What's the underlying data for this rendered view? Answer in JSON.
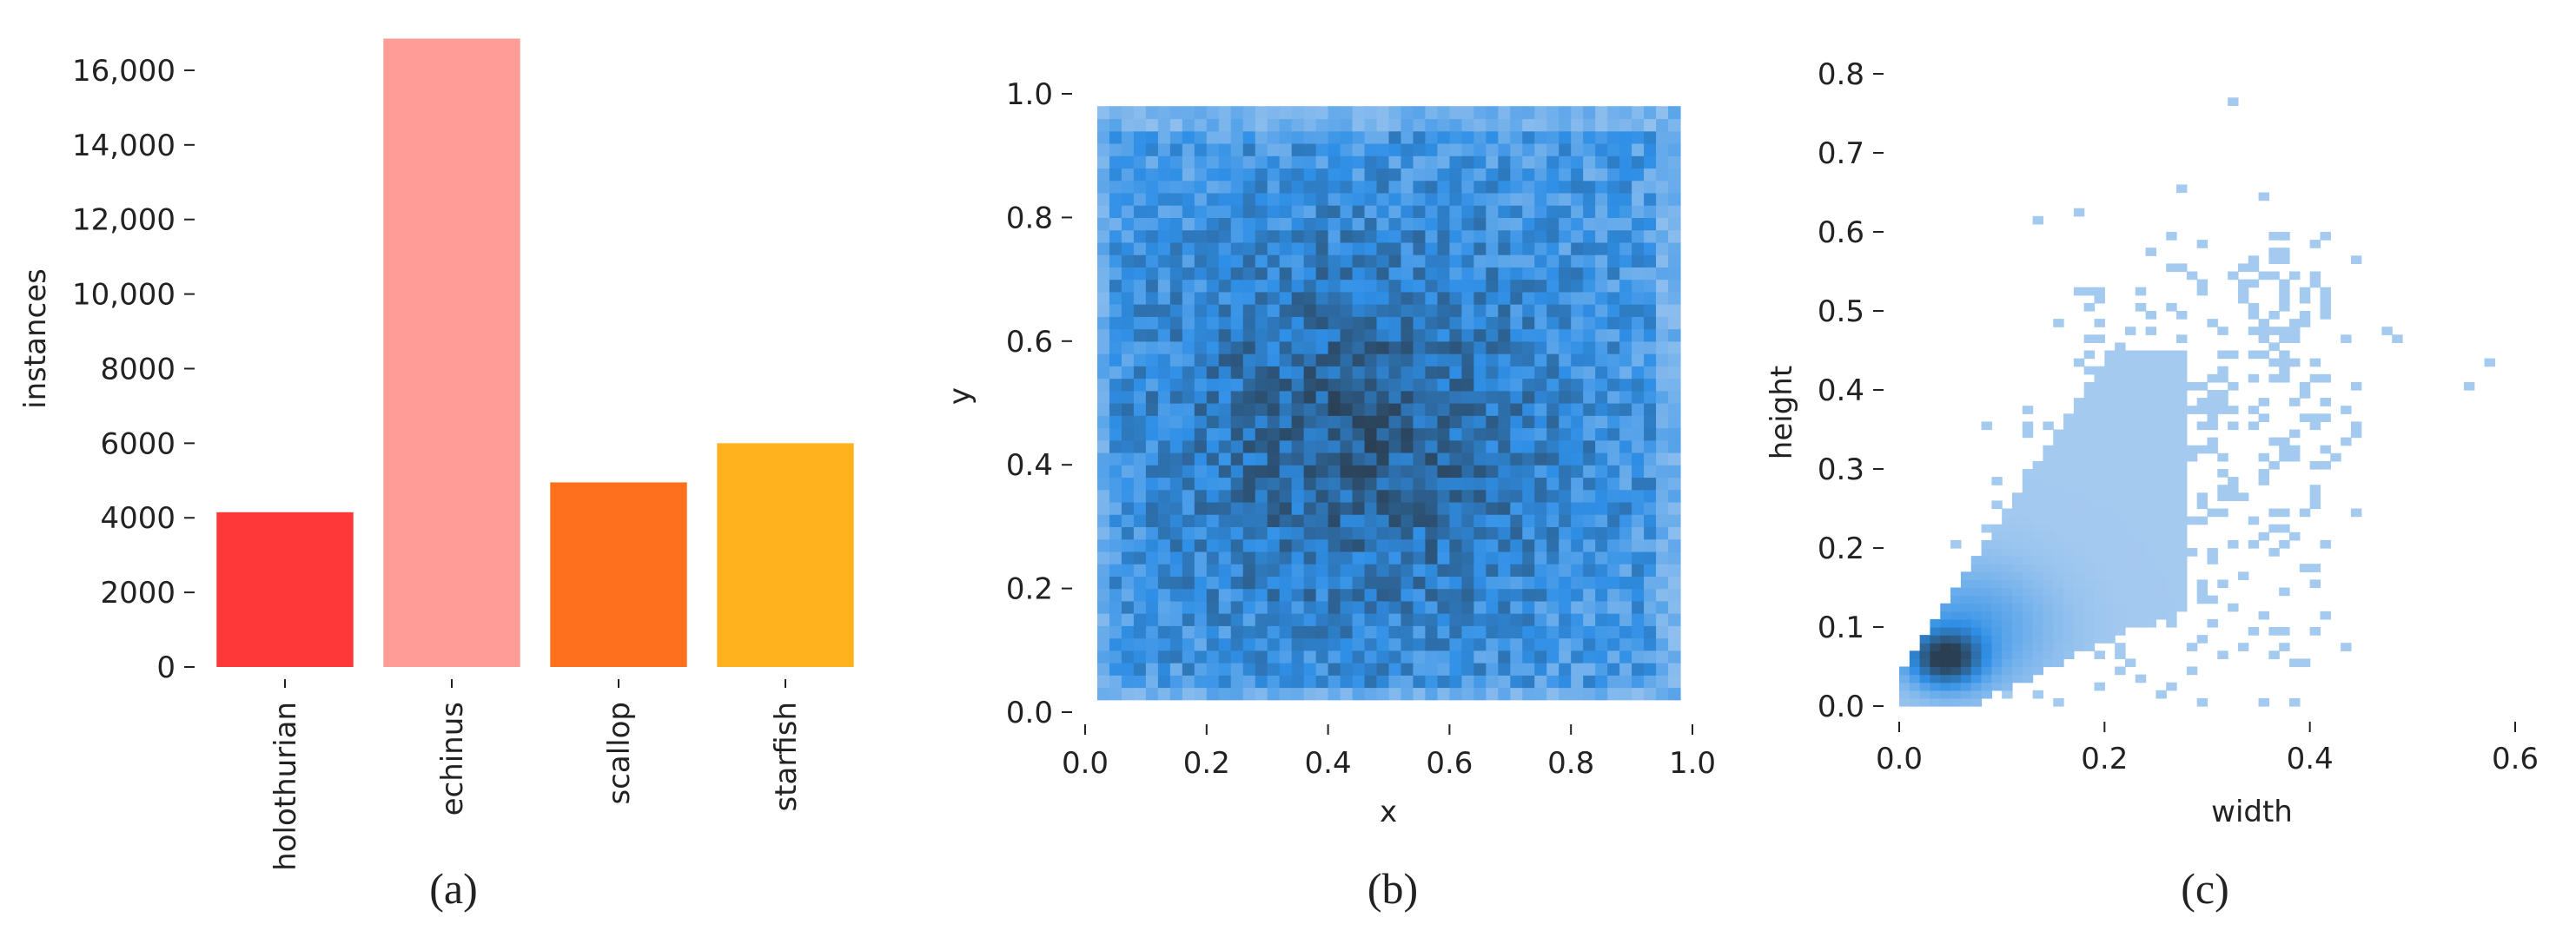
{
  "chart_data": [
    {
      "type": "bar",
      "caption": "(a)",
      "categories": [
        "holothurian",
        "echinus",
        "scallop",
        "starfish"
      ],
      "values": [
        4150,
        16850,
        4950,
        6000
      ],
      "colors": [
        "#fe3838",
        "#fe9d97",
        "#ff701e",
        "#ffb21d"
      ],
      "xlabel": "",
      "ylabel": "instances",
      "ylim": [
        0,
        17000
      ],
      "yticks": [
        0,
        2000,
        4000,
        6000,
        8000,
        10000,
        12000,
        14000,
        16000
      ],
      "ytick_labels": [
        "0",
        "2000",
        "4000",
        "6000",
        "8000",
        "10,000",
        "12,000",
        "14,000",
        "16,000"
      ],
      "grid": false
    },
    {
      "type": "heatmap",
      "caption": "(b)",
      "description_of_values": "2D histogram of box centers; 50x50 bins covering [0,1]x[0,1], densest near x≈0.45, y≈0.45",
      "xlabel": "x",
      "ylabel": "y",
      "xlim": [
        0,
        1
      ],
      "ylim": [
        0,
        1
      ],
      "xticks": [
        0.0,
        0.2,
        0.4,
        0.6,
        0.8,
        1.0
      ],
      "xtick_labels": [
        "0.0",
        "0.2",
        "0.4",
        "0.6",
        "0.8",
        "1.0"
      ],
      "yticks": [
        0.0,
        0.2,
        0.4,
        0.6,
        0.8,
        1.0
      ],
      "ytick_labels": [
        "0.0",
        "0.2",
        "0.4",
        "0.6",
        "0.8",
        "1.0"
      ],
      "bins": 50,
      "data_extent": [
        0.02,
        0.98
      ],
      "peak": [
        0.45,
        0.45
      ],
      "colors": {
        "low": "#a9ccf0",
        "mid": "#2f8fe6",
        "high": "#2b3f52"
      },
      "grid": false
    },
    {
      "type": "heatmap",
      "caption": "(c)",
      "description_of_values": "2D histogram of box width vs height; dense diagonal cluster near (0.04,0.06), sparse outliers up to (0.57,0.43) and (0.32,0.76)",
      "xlabel": "width",
      "ylabel": "height",
      "xlim": [
        0,
        0.6
      ],
      "ylim": [
        0,
        0.8
      ],
      "xticks": [
        0.0,
        0.2,
        0.4,
        0.6
      ],
      "xtick_labels": [
        "0.0",
        "0.2",
        "0.4",
        "0.6"
      ],
      "yticks": [
        0.0,
        0.1,
        0.2,
        0.3,
        0.4,
        0.5,
        0.6,
        0.7,
        0.8
      ],
      "ytick_labels": [
        "0.0",
        "0.1",
        "0.2",
        "0.3",
        "0.4",
        "0.5",
        "0.6",
        "0.7",
        "0.8"
      ],
      "bin_size": 0.01,
      "outliers": [
        [
          0.32,
          0.76
        ],
        [
          0.57,
          0.43
        ],
        [
          0.55,
          0.4
        ],
        [
          0.44,
          0.56
        ],
        [
          0.47,
          0.47
        ],
        [
          0.37,
          0.59
        ],
        [
          0.17,
          0.62
        ],
        [
          0.13,
          0.61
        ],
        [
          0.27,
          0.65
        ],
        [
          0.35,
          0.64
        ],
        [
          0.41,
          0.38
        ],
        [
          0.44,
          0.4
        ],
        [
          0.48,
          0.46
        ],
        [
          0.36,
          0.22
        ]
      ],
      "colors": {
        "low": "#a9ccf0",
        "mid": "#2f8fe6",
        "high": "#2b3f52"
      },
      "grid": false
    }
  ]
}
